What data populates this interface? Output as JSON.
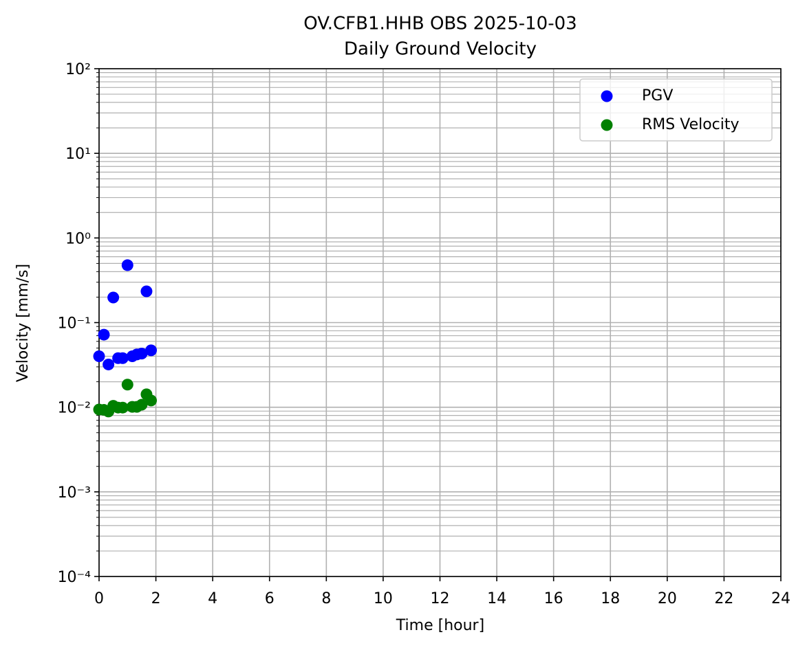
{
  "chart_data": {
    "type": "scatter",
    "title": "OV.CFB1.HHB OBS 2025-10-03",
    "subtitle": "Daily Ground Velocity",
    "x_label": "Time [hour]",
    "y_label": "Velocity [mm/s]",
    "y_scale": "log",
    "grid": true,
    "minor_grid": true,
    "legend_position": "upper-right",
    "xlim": [
      0,
      24
    ],
    "xticks": [
      0,
      2,
      4,
      6,
      8,
      10,
      12,
      14,
      16,
      18,
      20,
      22,
      24
    ],
    "ylim": [
      0.0001,
      100
    ],
    "yticks": [
      {
        "value": 0.0001,
        "label": "10⁻⁴"
      },
      {
        "value": 0.001,
        "label": "10⁻³"
      },
      {
        "value": 0.01,
        "label": "10⁻²"
      },
      {
        "value": 0.1,
        "label": "10⁻¹"
      },
      {
        "value": 1,
        "label": "10⁰"
      },
      {
        "value": 10,
        "label": "10¹"
      },
      {
        "value": 100,
        "label": "10²"
      }
    ],
    "series": [
      {
        "name": "PGV",
        "color": "#0000ff",
        "x": [
          0,
          0.17,
          0.33,
          0.5,
          0.67,
          0.83,
          1.0,
          1.17,
          1.33,
          1.5,
          1.67,
          1.83
        ],
        "values": [
          0.04,
          0.072,
          0.032,
          0.198,
          0.038,
          0.038,
          0.477,
          0.04,
          0.042,
          0.043,
          0.234,
          0.047
        ]
      },
      {
        "name": "RMS Velocity",
        "color": "#008000",
        "x": [
          0,
          0.17,
          0.33,
          0.5,
          0.67,
          0.83,
          1.0,
          1.17,
          1.33,
          1.5,
          1.67,
          1.83
        ],
        "values": [
          0.0094,
          0.0093,
          0.0089,
          0.0104,
          0.0099,
          0.0099,
          0.0185,
          0.0101,
          0.0101,
          0.0107,
          0.0142,
          0.012
        ]
      }
    ]
  }
}
